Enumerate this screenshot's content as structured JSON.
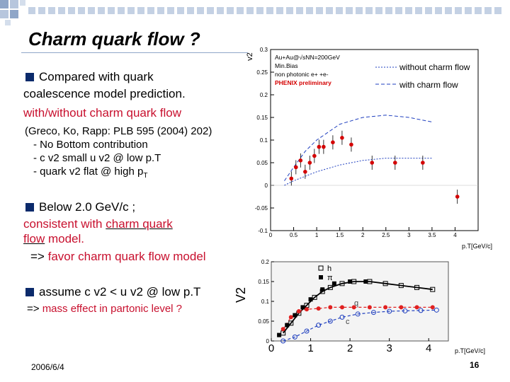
{
  "slide": {
    "title": "Charm quark flow ?",
    "b1_l1": "Compared with quark",
    "b1_l2": "coalescence model prediction.",
    "b1_l3": "with/without charm quark flow",
    "b1_l4": "(Greco, Ko, Rapp: PLB 595 (2004) 202)",
    "b1_l5": "- No Bottom contribution",
    "b1_l6": "- c v2 small u v2 @ low p.T",
    "b1_l7a": "- quark v2 flat @ high p",
    "b1_l7sub": "T",
    "b2_l1": "Below 2.0 GeV/c ;",
    "b2_l2a": "consistent with ",
    "b2_l2b": "charm quark",
    "b2_l3a": "flow",
    "b2_l3b": " model.",
    "b2_l4a": "=> ",
    "b2_l4b": "favor charm quark flow model",
    "b3_l1": "assume c v2 < u v2 @ low p.T",
    "b3_l2a": "=> ",
    "b3_l2b": "mass effect in partonic level ?",
    "date": "2006/6/4",
    "page": "16"
  },
  "colors": {
    "bullet": "#0b2a6b",
    "accent_red": "#c8102e",
    "deco_squares": "#8fa6c8"
  },
  "chart_data": [
    {
      "type": "scatter",
      "ylabel": "v2",
      "xlabel_unit": "p.T[GeV/c]",
      "xlim": [
        0,
        4.5
      ],
      "ylim": [
        -0.1,
        0.3
      ],
      "xticks": [
        "0",
        "0.5",
        "1",
        "1.5",
        "2",
        "2.5",
        "3",
        "3.5",
        "4"
      ],
      "yticks": [
        "-0.1",
        "-0.05",
        "0",
        "0.05",
        "0.1",
        "0.15",
        "0.2",
        "0.25",
        "0.3"
      ],
      "legend_box": [
        "Au+Au@√sNN=200GeV",
        "Min.Bias",
        "non photonic e+ +e-",
        "PHENIX preliminary"
      ],
      "series": [
        {
          "name": "without charm flow",
          "style": "dotted",
          "color": "#1f3fbf",
          "x": [
            0.3,
            0.5,
            0.75,
            1.0,
            1.5,
            2.0,
            2.5,
            3.0,
            3.5
          ],
          "y": [
            0.0,
            0.01,
            0.02,
            0.03,
            0.045,
            0.055,
            0.06,
            0.06,
            0.06
          ]
        },
        {
          "name": "with charm flow",
          "style": "dashed",
          "color": "#1f3fbf",
          "x": [
            0.3,
            0.5,
            0.75,
            1.0,
            1.5,
            2.0,
            2.5,
            3.0,
            3.5
          ],
          "y": [
            0.01,
            0.04,
            0.075,
            0.1,
            0.135,
            0.15,
            0.155,
            0.15,
            0.14
          ]
        },
        {
          "name": "data",
          "color": "#d40000",
          "x": [
            0.45,
            0.55,
            0.65,
            0.75,
            0.85,
            0.95,
            1.05,
            1.15,
            1.35,
            1.55,
            1.75,
            2.2,
            2.7,
            3.3,
            4.05
          ],
          "y": [
            0.015,
            0.04,
            0.055,
            0.03,
            0.05,
            0.065,
            0.085,
            0.085,
            0.095,
            0.105,
            0.09,
            0.05,
            0.05,
            0.05,
            -0.025
          ]
        }
      ]
    },
    {
      "type": "line",
      "ylabel": "V2",
      "xlabel_unit": "p.T[GeV/c]",
      "xlim": [
        0,
        4.5
      ],
      "ylim": [
        0,
        0.2
      ],
      "xticks": [
        "0",
        "1",
        "2",
        "3",
        "4"
      ],
      "yticks": [
        "0",
        "0.05",
        "0.1",
        "0.15",
        "0.2"
      ],
      "legend": [
        "h",
        "π",
        "q",
        "c"
      ],
      "series": [
        {
          "name": "h",
          "marker": "open-square",
          "color": "#000000",
          "x": [
            0.3,
            0.5,
            0.7,
            0.9,
            1.1,
            1.3,
            1.5,
            1.8,
            2.1,
            2.5,
            2.9,
            3.3,
            3.7,
            4.1
          ],
          "y": [
            0.02,
            0.045,
            0.07,
            0.09,
            0.11,
            0.125,
            0.135,
            0.145,
            0.15,
            0.15,
            0.145,
            0.14,
            0.135,
            0.13
          ]
        },
        {
          "name": "π",
          "marker": "filled-square",
          "color": "#000000",
          "x": [
            0.2,
            0.4,
            0.6,
            0.8,
            1.0,
            1.3,
            1.6,
            2.0,
            2.4
          ],
          "y": [
            0.015,
            0.04,
            0.065,
            0.085,
            0.105,
            0.13,
            0.145,
            0.15,
            0.15
          ]
        },
        {
          "name": "q",
          "marker": "filled-circle",
          "color": "#e02020",
          "x": [
            0.3,
            0.5,
            0.7,
            0.9,
            1.2,
            1.5,
            1.8,
            2.1,
            2.5,
            2.9,
            3.3,
            3.7,
            4.1
          ],
          "y": [
            0.03,
            0.06,
            0.075,
            0.08,
            0.082,
            0.085,
            0.085,
            0.085,
            0.085,
            0.085,
            0.085,
            0.085,
            0.085
          ]
        },
        {
          "name": "c",
          "marker": "open-circle",
          "color": "#1f3fbf",
          "x": [
            0.3,
            0.6,
            0.9,
            1.2,
            1.5,
            1.8,
            2.2,
            2.6,
            3.0,
            3.4,
            3.8,
            4.2
          ],
          "y": [
            0.0,
            0.01,
            0.025,
            0.04,
            0.05,
            0.06,
            0.068,
            0.072,
            0.075,
            0.076,
            0.077,
            0.078
          ]
        }
      ]
    }
  ]
}
